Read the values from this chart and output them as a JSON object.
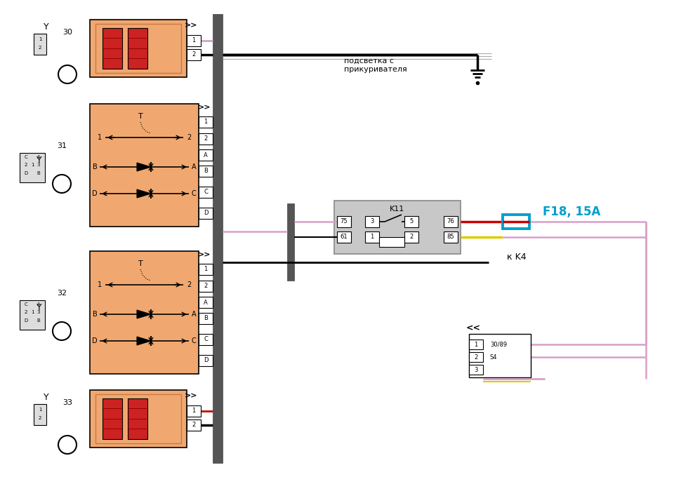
{
  "bg_color": "#ffffff",
  "fig_width": 9.6,
  "fig_height": 6.8,
  "orange_fill": "#f0a870",
  "heating_fill": "#cc2222",
  "pink_wire": "#d8a0c8",
  "red_wire": "#cc0000",
  "black_wire": "#000000",
  "gray_wire": "#888888",
  "gray_bus": "#666666",
  "cyan_color": "#00a0cc",
  "yellow_wire": "#ddcc00",
  "relay_fill": "#c8c8c8",
  "label_podsvetka": "подсветка с\nприкуривателя",
  "label_k11": "K11",
  "label_f18": "F18, 15A",
  "label_kk4": "к K4",
  "label_30": "30",
  "label_31": "31",
  "label_32": "32",
  "label_33": "33"
}
